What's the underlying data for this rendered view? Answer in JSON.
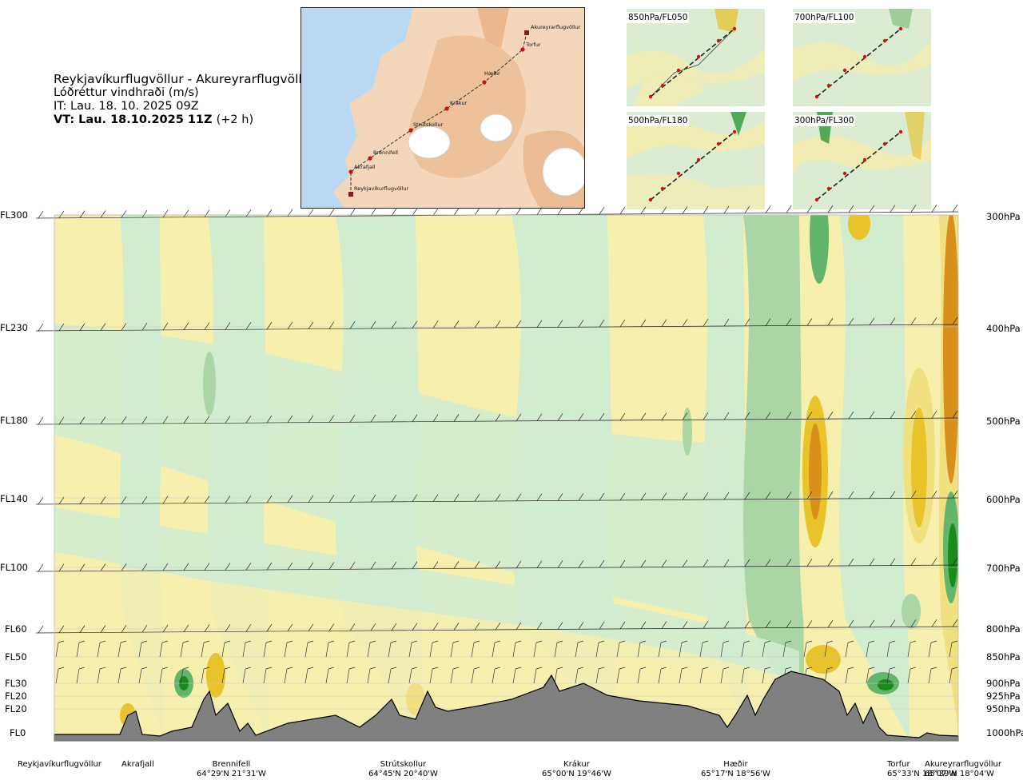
{
  "header": {
    "route": "Reykjavíkurflugvöllur - Akureyrarflugvöllur",
    "product": "Lóðréttur vindhraði (m/s)",
    "initial_time": "IT: Lau. 18. 10. 2025 09Z",
    "valid_time_bold": "VT: Lau. 18.10.2025 11Z",
    "valid_time_offset": "(+2 h)"
  },
  "route_map": {
    "points": [
      "Reykjavíkurflugvöllur",
      "Akrafjall",
      "Brennifell",
      "Strútskollur",
      "Krákur",
      "Hæðir",
      "Torfur",
      "Akureyrarflugvöllur"
    ]
  },
  "mini_maps": [
    {
      "label": "850hPa/FL050"
    },
    {
      "label": "700hPa/FL100"
    },
    {
      "label": "500hPa/FL180"
    },
    {
      "label": "300hPa/FL300"
    }
  ],
  "levels": {
    "flight_levels": [
      "FL300",
      "FL230",
      "FL180",
      "FL140",
      "FL100",
      "FL60",
      "FL50",
      "FL30",
      "FL20",
      "FL20",
      "FL0"
    ],
    "pressure_levels": [
      "300hPa",
      "400hPa",
      "500hPa",
      "600hPa",
      "700hPa",
      "800hPa",
      "850hPa",
      "900hPa",
      "925hPa",
      "950hPa",
      "1000hPa"
    ]
  },
  "stations": [
    {
      "name": "Reykjavíkurflugvöllur",
      "coord": ""
    },
    {
      "name": "Akrafjall",
      "coord": ""
    },
    {
      "name": "Brennifell",
      "coord": "64°29'N 21°31'W"
    },
    {
      "name": "Strútskollur",
      "coord": "64°45'N 20°40'W"
    },
    {
      "name": "Krákur",
      "coord": "65°00'N 19°46'W"
    },
    {
      "name": "Hæðir",
      "coord": "65°17'N 18°56'W"
    },
    {
      "name": "Torfur",
      "coord": "65°33'N 18°07'W"
    },
    {
      "name": "Akureyrarflugvöllur",
      "coord": "65°39'N 18°04'W"
    }
  ],
  "chart_data": {
    "type": "heatmap",
    "title": "Reykjavíkurflugvöllur - Akureyrarflugvöllur",
    "subtitle": "Lóðréttur vindhraði (m/s)",
    "y_levels_hPa": [
      300,
      400,
      500,
      600,
      700,
      800,
      850,
      900,
      925,
      950,
      1000
    ],
    "y_levels_FL": [
      "FL300",
      "FL230",
      "FL180",
      "FL140",
      "FL100",
      "FL60",
      "FL50",
      "FL30",
      "FL20",
      "FL20",
      "FL0"
    ],
    "x_stations": [
      "Reykjavíkurflugvöllur",
      "Akrafjall",
      "Brennifell",
      "Strútskollur",
      "Krákur",
      "Hæðir",
      "Torfur",
      "Akureyrarflugvöllur"
    ],
    "palette": {
      "strong_up": "#1a8a1a",
      "mod_up": "#62b56a",
      "weak_up": "#a9d6a4",
      "slight_up": "#d2ecd0",
      "near_zero": "#fdfbe8",
      "slight_down": "#f7efae",
      "weak_down": "#f0e080",
      "mod_down": "#e8c42a",
      "strong_down": "#d9901a",
      "terrain": "#808080"
    }
  }
}
